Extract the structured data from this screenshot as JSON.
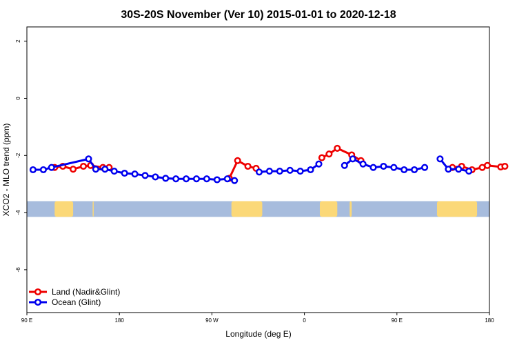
{
  "chart_data": {
    "type": "line",
    "title": "30S-20S November (Ver 10)   2015-01-01 to 2020-12-18",
    "xlabel": "Longitude (deg E)",
    "ylabel": "XCO2 - MLO trend (ppm)",
    "xlim": [
      90,
      540
    ],
    "ylim": [
      -7.5,
      2.5
    ],
    "x_ticks": [
      {
        "value": 90,
        "label": "90 E"
      },
      {
        "value": 180,
        "label": "180"
      },
      {
        "value": 270,
        "label": "90 W"
      },
      {
        "value": 360,
        "label": "0"
      },
      {
        "value": 450,
        "label": "90 E"
      },
      {
        "value": 540,
        "label": "180"
      }
    ],
    "y_ticks": [
      {
        "value": 2,
        "label": "2"
      },
      {
        "value": 0,
        "label": "0"
      },
      {
        "value": -2,
        "label": "-2"
      },
      {
        "value": -4,
        "label": "-4"
      },
      {
        "value": -6,
        "label": "-6"
      }
    ],
    "map_band": {
      "y_top": -3.6,
      "y_bottom": -4.15,
      "ocean_color": "#a7bcdd",
      "land_color": "#fbd878",
      "land_spans": [
        [
          117,
          135
        ],
        [
          154,
          155
        ],
        [
          289,
          319
        ],
        [
          375,
          392
        ],
        [
          404,
          406
        ],
        [
          489,
          528
        ],
        [
          540,
          545
        ]
      ]
    },
    "series": [
      {
        "name": "Land (Nadir&Glint)",
        "color": "#ee0000",
        "segments": [
          [
            [
              117,
              -2.42
            ],
            [
              125,
              -2.38
            ],
            [
              135,
              -2.48
            ],
            [
              145,
              -2.38
            ],
            [
              152,
              -2.35
            ],
            [
              164,
              -2.42
            ],
            [
              170,
              -2.42
            ]
          ],
          [
            [
              287,
              -2.8
            ],
            [
              295,
              -2.18
            ],
            [
              305,
              -2.38
            ],
            [
              313,
              -2.45
            ]
          ],
          [
            [
              377,
              -2.08
            ],
            [
              384,
              -1.95
            ],
            [
              392,
              -1.75
            ],
            [
              406,
              -1.98
            ],
            [
              415,
              -2.18
            ]
          ],
          [
            [
              504,
              -2.42
            ],
            [
              513,
              -2.38
            ],
            [
              523,
              -2.5
            ],
            [
              533,
              -2.42
            ],
            [
              538,
              -2.35
            ],
            [
              551,
              -2.4
            ],
            [
              555,
              -2.38
            ]
          ]
        ]
      },
      {
        "name": "Ocean (Glint)",
        "color": "#0000ee",
        "segments": [
          [
            [
              96,
              -2.5
            ],
            [
              106,
              -2.5
            ],
            [
              114,
              -2.42
            ],
            [
              150,
              -2.12
            ],
            [
              157,
              -2.48
            ],
            [
              166,
              -2.48
            ],
            [
              175,
              -2.55
            ],
            [
              185,
              -2.62
            ],
            [
              195,
              -2.65
            ],
            [
              205,
              -2.7
            ],
            [
              215,
              -2.75
            ],
            [
              225,
              -2.8
            ],
            [
              235,
              -2.82
            ],
            [
              245,
              -2.82
            ],
            [
              255,
              -2.82
            ],
            [
              265,
              -2.82
            ],
            [
              275,
              -2.85
            ],
            [
              285,
              -2.82
            ],
            [
              292,
              -2.88
            ]
          ],
          [
            [
              316,
              -2.58
            ],
            [
              326,
              -2.55
            ],
            [
              336,
              -2.55
            ],
            [
              346,
              -2.52
            ],
            [
              356,
              -2.55
            ],
            [
              366,
              -2.5
            ],
            [
              374,
              -2.3
            ]
          ],
          [
            [
              399,
              -2.35
            ],
            [
              407,
              -2.12
            ],
            [
              417,
              -2.3
            ],
            [
              427,
              -2.42
            ],
            [
              437,
              -2.38
            ],
            [
              447,
              -2.42
            ],
            [
              457,
              -2.5
            ],
            [
              467,
              -2.5
            ],
            [
              477,
              -2.42
            ]
          ],
          [
            [
              492,
              -2.12
            ],
            [
              500,
              -2.48
            ],
            [
              510,
              -2.48
            ],
            [
              520,
              -2.55
            ]
          ]
        ]
      }
    ],
    "legend": {
      "placement": "bottom-left",
      "entries": [
        {
          "label": "Land (Nadir&Glint)",
          "color": "#ee0000"
        },
        {
          "label": "Ocean (Glint)",
          "color": "#0000ee"
        }
      ]
    }
  }
}
